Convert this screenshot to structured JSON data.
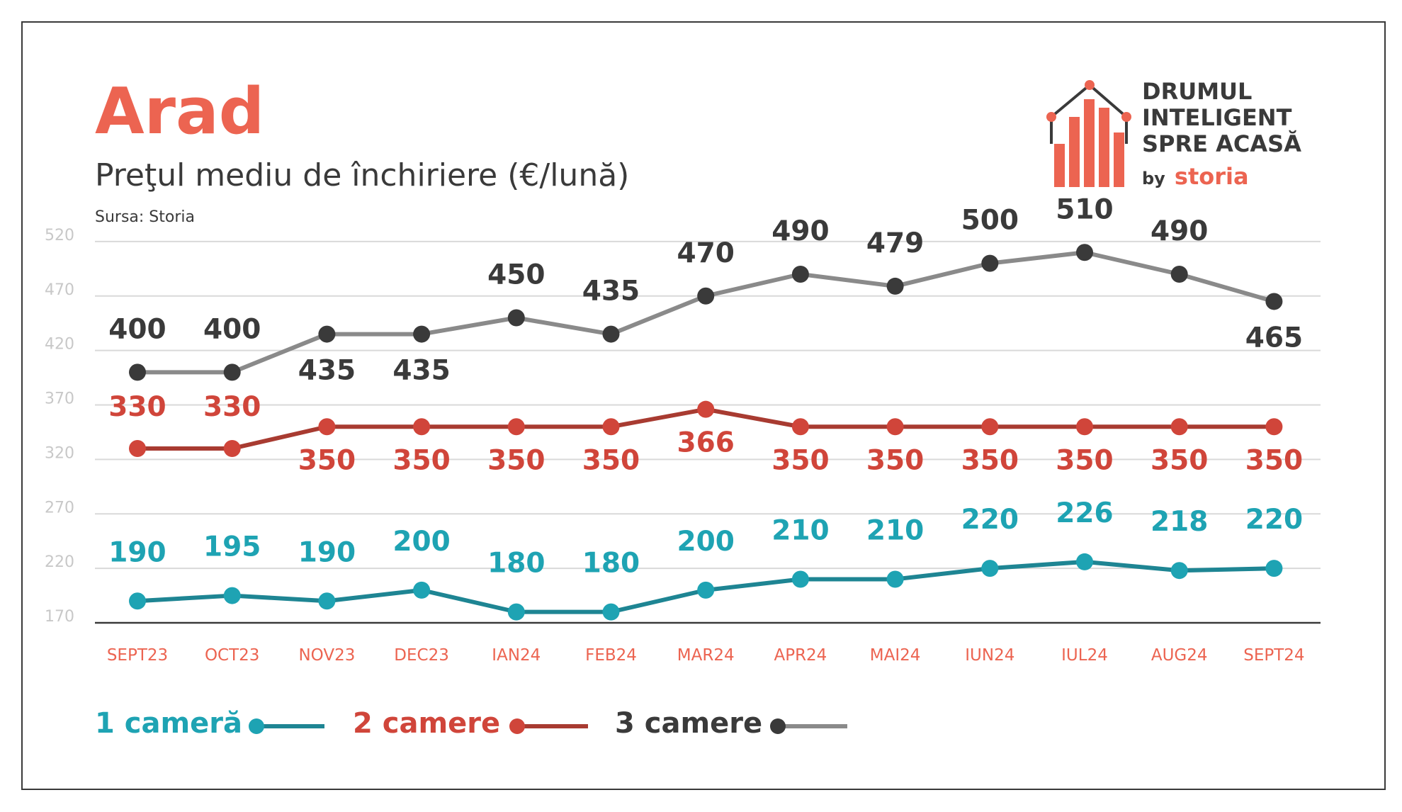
{
  "colors": {
    "accent": "#ec6451",
    "text": "#3a3a3a",
    "grid": "#d9d9d9",
    "axis": "#3a3a3a",
    "tick": "#c8c8c8",
    "teal": "#1ea3b3",
    "teal_line": "#1e8593",
    "red": "#d0453a",
    "red_line": "#a83b31",
    "dark": "#3a3a3a",
    "gray_line": "#8a8a8a"
  },
  "logo": {
    "line1": "DRUMUL",
    "line2": "INTELIGENT",
    "line3": "SPRE ACASĂ",
    "by": "by",
    "brand": "storia"
  },
  "chart_data": {
    "type": "line",
    "title": "Arad",
    "subtitle": "Preţul mediu de închiriere (€/lună)",
    "source": "Sursa: Storia",
    "categories": [
      "SEPT23",
      "OCT23",
      "NOV23",
      "DEC23",
      "IAN24",
      "FEB24",
      "MAR24",
      "APR24",
      "MAI24",
      "IUN24",
      "IUL24",
      "AUG24",
      "SEPT24"
    ],
    "ylim": [
      170,
      520
    ],
    "yticks": [
      170,
      220,
      270,
      320,
      370,
      420,
      470,
      520
    ],
    "grid": true,
    "legend": "bottom-left",
    "series": [
      {
        "key": "one",
        "name": "1 cameră",
        "values": [
          190,
          195,
          190,
          200,
          180,
          180,
          200,
          210,
          210,
          220,
          226,
          218,
          220
        ],
        "label_position": "above"
      },
      {
        "key": "two",
        "name": "2 camere",
        "values": [
          330,
          330,
          350,
          350,
          350,
          350,
          366,
          350,
          350,
          350,
          350,
          350,
          350
        ],
        "label_position": "mixed"
      },
      {
        "key": "three",
        "name": "3 camere",
        "values": [
          400,
          400,
          435,
          435,
          450,
          435,
          470,
          490,
          479,
          500,
          510,
          490,
          465
        ],
        "label_position": "mixed"
      }
    ]
  }
}
